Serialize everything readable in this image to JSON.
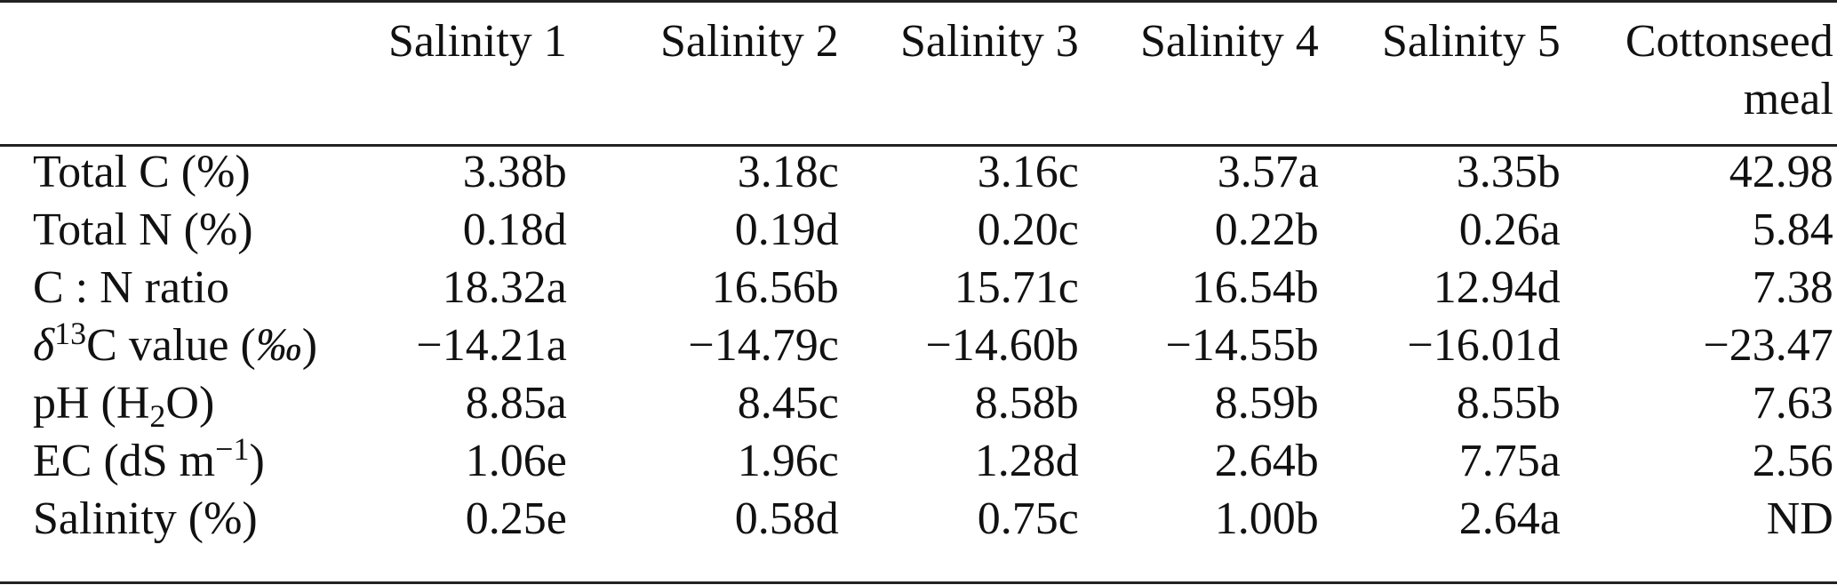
{
  "table": {
    "columns": [
      "",
      "Salinity 1",
      "Salinity 2",
      "Salinity 3",
      "Salinity 4",
      "Salinity 5",
      "Cottonseed meal"
    ],
    "header_lines_last": [
      "Cottonseed",
      "meal"
    ],
    "rows": [
      {
        "label_parts": [
          {
            "t": "Total C (%)"
          }
        ],
        "values": [
          "3.38b",
          "3.18c",
          "3.16c",
          "3.57a",
          "3.35b",
          "42.98"
        ]
      },
      {
        "label_parts": [
          {
            "t": "Total N (%)"
          }
        ],
        "values": [
          "0.18d",
          "0.19d",
          "0.20c",
          "0.22b",
          "0.26a",
          "5.84"
        ]
      },
      {
        "label_parts": [
          {
            "t": "C : N ratio"
          }
        ],
        "values": [
          "18.32a",
          "16.56b",
          "15.71c",
          "16.54b",
          "12.94d",
          "7.38"
        ]
      },
      {
        "label_parts": [
          {
            "t": "δ",
            "s": "i"
          },
          {
            "t": "13",
            "s": "sup"
          },
          {
            "t": "C value ("
          },
          {
            "t": "‰",
            "s": "i"
          },
          {
            "t": ")"
          }
        ],
        "values": [
          "−14.21a",
          "−14.79c",
          "−14.60b",
          "−14.55b",
          "−16.01d",
          "−23.47"
        ]
      },
      {
        "label_parts": [
          {
            "t": "pH (H"
          },
          {
            "t": "2",
            "s": "sub"
          },
          {
            "t": "O)"
          }
        ],
        "values": [
          "8.85a",
          "8.45c",
          "8.58b",
          "8.59b",
          "8.55b",
          "7.63"
        ]
      },
      {
        "label_parts": [
          {
            "t": "EC (dS m"
          },
          {
            "t": "−1",
            "s": "sup"
          },
          {
            "t": ")"
          }
        ],
        "values": [
          "1.06e",
          "1.96c",
          "1.28d",
          "2.64b",
          "7.75a",
          "2.56"
        ]
      },
      {
        "label_parts": [
          {
            "t": "Salinity (%)"
          }
        ],
        "values": [
          "0.25e",
          "0.58d",
          "0.75c",
          "1.00b",
          "2.64a",
          "ND"
        ]
      }
    ]
  }
}
